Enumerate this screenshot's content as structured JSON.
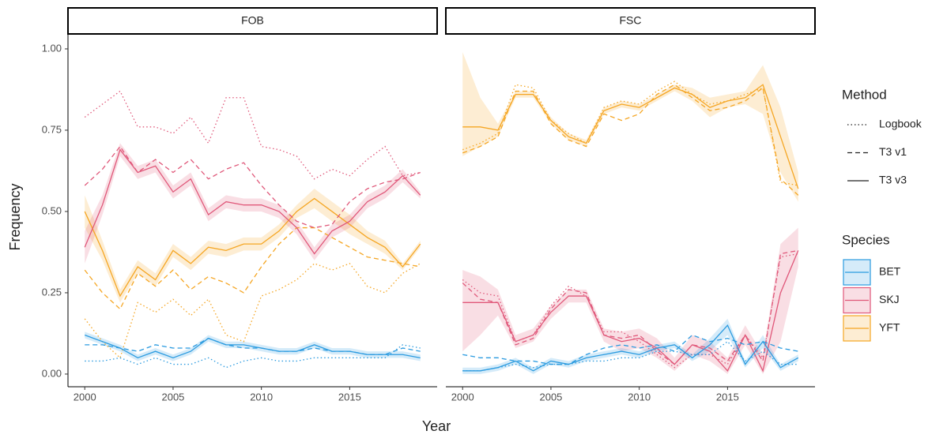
{
  "shared": {
    "x_label": "Year",
    "y_label": "Frequency",
    "legend": {
      "method_title": "Method",
      "methods": [
        {
          "name": "Logbook",
          "dash": "1.5 3"
        },
        {
          "name": "T3 v1",
          "dash": "6 4"
        },
        {
          "name": "T3 v3",
          "dash": "none"
        }
      ],
      "species_title": "Species",
      "species": [
        {
          "name": "BET",
          "color": "#2b9be0"
        },
        {
          "name": "SKJ",
          "color": "#e0587a"
        },
        {
          "name": "YFT",
          "color": "#f5a623"
        }
      ]
    }
  },
  "chart_data": [
    {
      "type": "line",
      "title": "FOB",
      "x": [
        2000,
        2001,
        2002,
        2003,
        2004,
        2005,
        2006,
        2007,
        2008,
        2009,
        2010,
        2011,
        2012,
        2013,
        2014,
        2015,
        2016,
        2017,
        2018,
        2019
      ],
      "xlim": [
        1999.05,
        2019.95
      ],
      "xticks": [
        2000,
        2005,
        2010,
        2015
      ],
      "ylim": [
        -0.039,
        1.046
      ],
      "yticks": [
        {
          "value": 0,
          "label": "0.00"
        },
        {
          "value": 0.25,
          "label": "0.25"
        },
        {
          "value": 0.5,
          "label": "0.50"
        },
        {
          "value": 0.75,
          "label": "0.75"
        },
        {
          "value": 1,
          "label": "1.00"
        }
      ],
      "series": [
        {
          "species": 2,
          "method": 0,
          "values": [
            0.17,
            0.1,
            0.05,
            0.22,
            0.19,
            0.23,
            0.18,
            0.23,
            0.12,
            0.1,
            0.24,
            0.26,
            0.29,
            0.34,
            0.32,
            0.34,
            0.27,
            0.25,
            0.31,
            0.34
          ]
        },
        {
          "species": 2,
          "method": 1,
          "values": [
            0.32,
            0.25,
            0.2,
            0.31,
            0.27,
            0.32,
            0.26,
            0.3,
            0.28,
            0.25,
            0.33,
            0.4,
            0.45,
            0.45,
            0.42,
            0.39,
            0.36,
            0.35,
            0.34,
            0.33
          ]
        },
        {
          "species": 2,
          "method": 2,
          "values": [
            0.5,
            0.38,
            0.24,
            0.33,
            0.29,
            0.38,
            0.34,
            0.39,
            0.38,
            0.4,
            0.4,
            0.44,
            0.5,
            0.54,
            0.5,
            0.46,
            0.42,
            0.39,
            0.33,
            0.4
          ],
          "lower": [
            0.45,
            0.35,
            0.22,
            0.31,
            0.27,
            0.36,
            0.32,
            0.37,
            0.36,
            0.38,
            0.38,
            0.42,
            0.48,
            0.51,
            0.47,
            0.43,
            0.4,
            0.37,
            0.32,
            0.39
          ],
          "upper": [
            0.55,
            0.41,
            0.26,
            0.35,
            0.31,
            0.4,
            0.36,
            0.41,
            0.4,
            0.42,
            0.42,
            0.46,
            0.52,
            0.57,
            0.53,
            0.49,
            0.44,
            0.41,
            0.34,
            0.41
          ]
        },
        {
          "species": 1,
          "method": 0,
          "values": [
            0.79,
            0.83,
            0.87,
            0.76,
            0.76,
            0.74,
            0.79,
            0.71,
            0.85,
            0.85,
            0.7,
            0.69,
            0.67,
            0.6,
            0.63,
            0.61,
            0.66,
            0.7,
            0.61,
            0.62
          ]
        },
        {
          "species": 1,
          "method": 1,
          "values": [
            0.58,
            0.63,
            0.7,
            0.62,
            0.66,
            0.62,
            0.66,
            0.6,
            0.63,
            0.65,
            0.58,
            0.52,
            0.47,
            0.45,
            0.46,
            0.53,
            0.57,
            0.59,
            0.6,
            0.62
          ]
        },
        {
          "species": 1,
          "method": 2,
          "values": [
            0.39,
            0.52,
            0.69,
            0.62,
            0.64,
            0.56,
            0.6,
            0.49,
            0.53,
            0.52,
            0.52,
            0.5,
            0.45,
            0.37,
            0.44,
            0.47,
            0.53,
            0.56,
            0.61,
            0.55
          ],
          "lower": [
            0.34,
            0.49,
            0.67,
            0.6,
            0.62,
            0.54,
            0.58,
            0.47,
            0.51,
            0.5,
            0.5,
            0.48,
            0.43,
            0.35,
            0.42,
            0.45,
            0.51,
            0.54,
            0.59,
            0.54
          ],
          "upper": [
            0.44,
            0.55,
            0.71,
            0.64,
            0.66,
            0.58,
            0.62,
            0.51,
            0.55,
            0.54,
            0.54,
            0.52,
            0.47,
            0.39,
            0.46,
            0.49,
            0.55,
            0.58,
            0.63,
            0.56
          ]
        },
        {
          "species": 0,
          "method": 0,
          "values": [
            0.04,
            0.04,
            0.05,
            0.03,
            0.05,
            0.03,
            0.03,
            0.05,
            0.02,
            0.04,
            0.05,
            0.04,
            0.04,
            0.05,
            0.05,
            0.05,
            0.05,
            0.05,
            0.09,
            0.08
          ]
        },
        {
          "species": 0,
          "method": 1,
          "values": [
            0.09,
            0.09,
            0.08,
            0.07,
            0.09,
            0.08,
            0.08,
            0.11,
            0.09,
            0.08,
            0.08,
            0.07,
            0.07,
            0.08,
            0.07,
            0.07,
            0.06,
            0.06,
            0.08,
            0.07
          ]
        },
        {
          "species": 0,
          "method": 2,
          "values": [
            0.12,
            0.1,
            0.08,
            0.05,
            0.07,
            0.05,
            0.07,
            0.11,
            0.09,
            0.09,
            0.08,
            0.07,
            0.07,
            0.09,
            0.07,
            0.07,
            0.06,
            0.06,
            0.06,
            0.05
          ],
          "lower": [
            0.11,
            0.09,
            0.07,
            0.04,
            0.06,
            0.04,
            0.06,
            0.1,
            0.08,
            0.08,
            0.07,
            0.06,
            0.06,
            0.08,
            0.06,
            0.06,
            0.05,
            0.05,
            0.05,
            0.04
          ],
          "upper": [
            0.13,
            0.11,
            0.09,
            0.06,
            0.08,
            0.06,
            0.08,
            0.12,
            0.1,
            0.1,
            0.09,
            0.08,
            0.08,
            0.1,
            0.08,
            0.08,
            0.07,
            0.07,
            0.07,
            0.06
          ]
        }
      ]
    },
    {
      "type": "line",
      "title": "FSC",
      "x": [
        2000,
        2001,
        2002,
        2003,
        2004,
        2005,
        2006,
        2007,
        2008,
        2009,
        2010,
        2011,
        2012,
        2013,
        2014,
        2015,
        2016,
        2017,
        2018,
        2019
      ],
      "xlim": [
        1999.05,
        2019.95
      ],
      "xticks": [
        2000,
        2005,
        2010,
        2015
      ],
      "ylim": [
        -0.039,
        1.046
      ],
      "series": [
        {
          "species": 2,
          "method": 0,
          "values": [
            0.69,
            0.71,
            0.74,
            0.89,
            0.88,
            0.78,
            0.74,
            0.71,
            0.82,
            0.84,
            0.83,
            0.87,
            0.9,
            0.86,
            0.83,
            0.84,
            0.86,
            0.88,
            0.59,
            0.58
          ]
        },
        {
          "species": 2,
          "method": 1,
          "values": [
            0.68,
            0.7,
            0.73,
            0.87,
            0.87,
            0.77,
            0.72,
            0.7,
            0.8,
            0.78,
            0.8,
            0.86,
            0.89,
            0.85,
            0.81,
            0.82,
            0.84,
            0.88,
            0.6,
            0.55
          ]
        },
        {
          "species": 2,
          "method": 2,
          "values": [
            0.76,
            0.76,
            0.75,
            0.86,
            0.86,
            0.78,
            0.73,
            0.71,
            0.81,
            0.83,
            0.82,
            0.85,
            0.88,
            0.86,
            0.82,
            0.84,
            0.85,
            0.89,
            0.73,
            0.57
          ],
          "lower": [
            0.67,
            0.7,
            0.73,
            0.85,
            0.85,
            0.77,
            0.72,
            0.7,
            0.8,
            0.82,
            0.81,
            0.84,
            0.87,
            0.84,
            0.79,
            0.82,
            0.83,
            0.8,
            0.62,
            0.53
          ],
          "upper": [
            0.99,
            0.85,
            0.77,
            0.87,
            0.87,
            0.79,
            0.74,
            0.72,
            0.82,
            0.84,
            0.83,
            0.86,
            0.89,
            0.88,
            0.85,
            0.86,
            0.87,
            0.95,
            0.82,
            0.62
          ]
        },
        {
          "species": 1,
          "method": 0,
          "values": [
            0.29,
            0.25,
            0.24,
            0.1,
            0.12,
            0.21,
            0.27,
            0.24,
            0.13,
            0.13,
            0.1,
            0.06,
            0.02,
            0.06,
            0.06,
            0.03,
            0.12,
            0.05,
            0.36,
            0.37
          ]
        },
        {
          "species": 1,
          "method": 1,
          "values": [
            0.28,
            0.23,
            0.22,
            0.09,
            0.11,
            0.2,
            0.26,
            0.25,
            0.12,
            0.11,
            0.12,
            0.07,
            0.03,
            0.09,
            0.08,
            0.04,
            0.12,
            0.04,
            0.37,
            0.38
          ]
        },
        {
          "species": 1,
          "method": 2,
          "values": [
            0.22,
            0.22,
            0.22,
            0.1,
            0.12,
            0.19,
            0.24,
            0.24,
            0.12,
            0.1,
            0.11,
            0.08,
            0.03,
            0.09,
            0.07,
            0.01,
            0.12,
            0.01,
            0.25,
            0.38
          ],
          "lower": [
            0.07,
            0.12,
            0.18,
            0.08,
            0.1,
            0.17,
            0.22,
            0.22,
            0.1,
            0.07,
            0.08,
            0.05,
            0.01,
            0.06,
            0.04,
            0.0,
            0.09,
            0.0,
            0.1,
            0.33
          ],
          "upper": [
            0.32,
            0.3,
            0.26,
            0.12,
            0.14,
            0.21,
            0.26,
            0.26,
            0.14,
            0.13,
            0.14,
            0.11,
            0.05,
            0.12,
            0.1,
            0.05,
            0.15,
            0.06,
            0.4,
            0.45
          ]
        },
        {
          "species": 0,
          "method": 0,
          "values": [
            0.01,
            0.01,
            0.02,
            0.03,
            0.02,
            0.03,
            0.03,
            0.04,
            0.04,
            0.05,
            0.05,
            0.07,
            0.07,
            0.06,
            0.06,
            0.1,
            0.04,
            0.07,
            0.03,
            0.03
          ]
        },
        {
          "species": 0,
          "method": 1,
          "values": [
            0.06,
            0.05,
            0.05,
            0.04,
            0.04,
            0.03,
            0.03,
            0.06,
            0.08,
            0.09,
            0.08,
            0.09,
            0.07,
            0.12,
            0.1,
            0.11,
            0.09,
            0.1,
            0.08,
            0.07
          ]
        },
        {
          "species": 0,
          "method": 2,
          "values": [
            0.01,
            0.01,
            0.02,
            0.04,
            0.01,
            0.04,
            0.03,
            0.05,
            0.06,
            0.07,
            0.06,
            0.08,
            0.09,
            0.05,
            0.09,
            0.15,
            0.03,
            0.1,
            0.02,
            0.05
          ],
          "lower": [
            0.0,
            0.0,
            0.01,
            0.03,
            0.0,
            0.03,
            0.02,
            0.04,
            0.05,
            0.06,
            0.05,
            0.07,
            0.08,
            0.04,
            0.07,
            0.12,
            0.02,
            0.08,
            0.01,
            0.04
          ],
          "upper": [
            0.02,
            0.02,
            0.03,
            0.05,
            0.02,
            0.05,
            0.04,
            0.06,
            0.07,
            0.08,
            0.07,
            0.09,
            0.1,
            0.06,
            0.11,
            0.17,
            0.04,
            0.12,
            0.03,
            0.06
          ]
        }
      ]
    }
  ]
}
